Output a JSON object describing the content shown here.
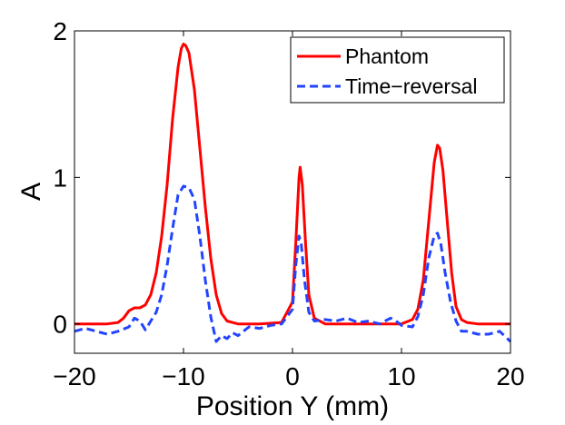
{
  "chart_data": {
    "type": "line",
    "title": "",
    "xlabel": "Position Y (mm)",
    "ylabel": "A",
    "xlim": [
      -20,
      20
    ],
    "ylim": [
      -0.2,
      2
    ],
    "xticks": [
      -20,
      -10,
      0,
      10,
      20
    ],
    "xtick_labels": [
      "−20",
      "−10",
      "0",
      "10",
      "20"
    ],
    "yticks": [
      0,
      1,
      2
    ],
    "ytick_labels": [
      "0",
      "1",
      "2"
    ],
    "grid": false,
    "legend_position": "top-right",
    "series": [
      {
        "name": "Phantom",
        "color": "#ff0000",
        "style": "solid",
        "x": [
          -20,
          -17,
          -16,
          -15.5,
          -15,
          -14.5,
          -14,
          -13.5,
          -13,
          -12.5,
          -12,
          -11.5,
          -11,
          -10.5,
          -10.2,
          -10,
          -9.8,
          -9.5,
          -9,
          -8.5,
          -8,
          -7.5,
          -7,
          -6.5,
          -6,
          -5,
          -3,
          -1,
          0,
          0.3,
          0.6,
          0.7,
          0.9,
          1.2,
          1.5,
          2,
          3,
          6,
          10,
          11,
          11.5,
          12,
          12.5,
          13,
          13.3,
          13.5,
          13.8,
          14.2,
          14.6,
          15,
          15.5,
          16,
          17,
          20
        ],
        "y": [
          0,
          0,
          0.01,
          0.04,
          0.09,
          0.11,
          0.11,
          0.13,
          0.2,
          0.35,
          0.6,
          0.95,
          1.4,
          1.75,
          1.88,
          1.91,
          1.9,
          1.85,
          1.6,
          1.2,
          0.8,
          0.45,
          0.2,
          0.07,
          0.02,
          0,
          0,
          0.01,
          0.15,
          0.55,
          1.0,
          1.07,
          0.95,
          0.55,
          0.2,
          0.04,
          0,
          0,
          0,
          0.03,
          0.1,
          0.3,
          0.7,
          1.1,
          1.22,
          1.2,
          1.05,
          0.7,
          0.35,
          0.12,
          0.03,
          0.01,
          0,
          0
        ]
      },
      {
        "name": "Time−reversal",
        "color": "#2244ff",
        "style": "dashed",
        "x": [
          -20,
          -19,
          -18,
          -17,
          -16,
          -15,
          -14.5,
          -14,
          -13.5,
          -13,
          -12.5,
          -12,
          -11.5,
          -11,
          -10.5,
          -10,
          -9.5,
          -9,
          -8.5,
          -8,
          -7.5,
          -7,
          -6.5,
          -6,
          -5.5,
          -5,
          -4,
          -3,
          -2,
          -1,
          0,
          0.3,
          0.6,
          0.8,
          1.1,
          1.5,
          2,
          3,
          4,
          5,
          6,
          7,
          8,
          9,
          9.5,
          10,
          11,
          11.5,
          12,
          12.5,
          13,
          13.3,
          13.6,
          14,
          14.5,
          15,
          15.5,
          16,
          17,
          18,
          19,
          20
        ],
        "y": [
          -0.05,
          -0.03,
          -0.05,
          -0.07,
          -0.05,
          -0.02,
          0.04,
          0.02,
          -0.04,
          0.02,
          0.08,
          0.2,
          0.4,
          0.65,
          0.88,
          0.94,
          0.93,
          0.85,
          0.6,
          0.3,
          0.05,
          -0.12,
          -0.08,
          -0.1,
          -0.06,
          -0.08,
          -0.02,
          -0.03,
          -0.01,
          0.0,
          0.1,
          0.4,
          0.6,
          0.55,
          0.3,
          0.08,
          0.02,
          0.03,
          0.02,
          0.04,
          0.01,
          0.02,
          0.0,
          0.04,
          0.02,
          -0.01,
          -0.02,
          0.05,
          0.2,
          0.45,
          0.6,
          0.62,
          0.55,
          0.35,
          0.15,
          0.02,
          -0.05,
          -0.05,
          -0.07,
          -0.07,
          -0.05,
          -0.12
        ]
      }
    ]
  }
}
